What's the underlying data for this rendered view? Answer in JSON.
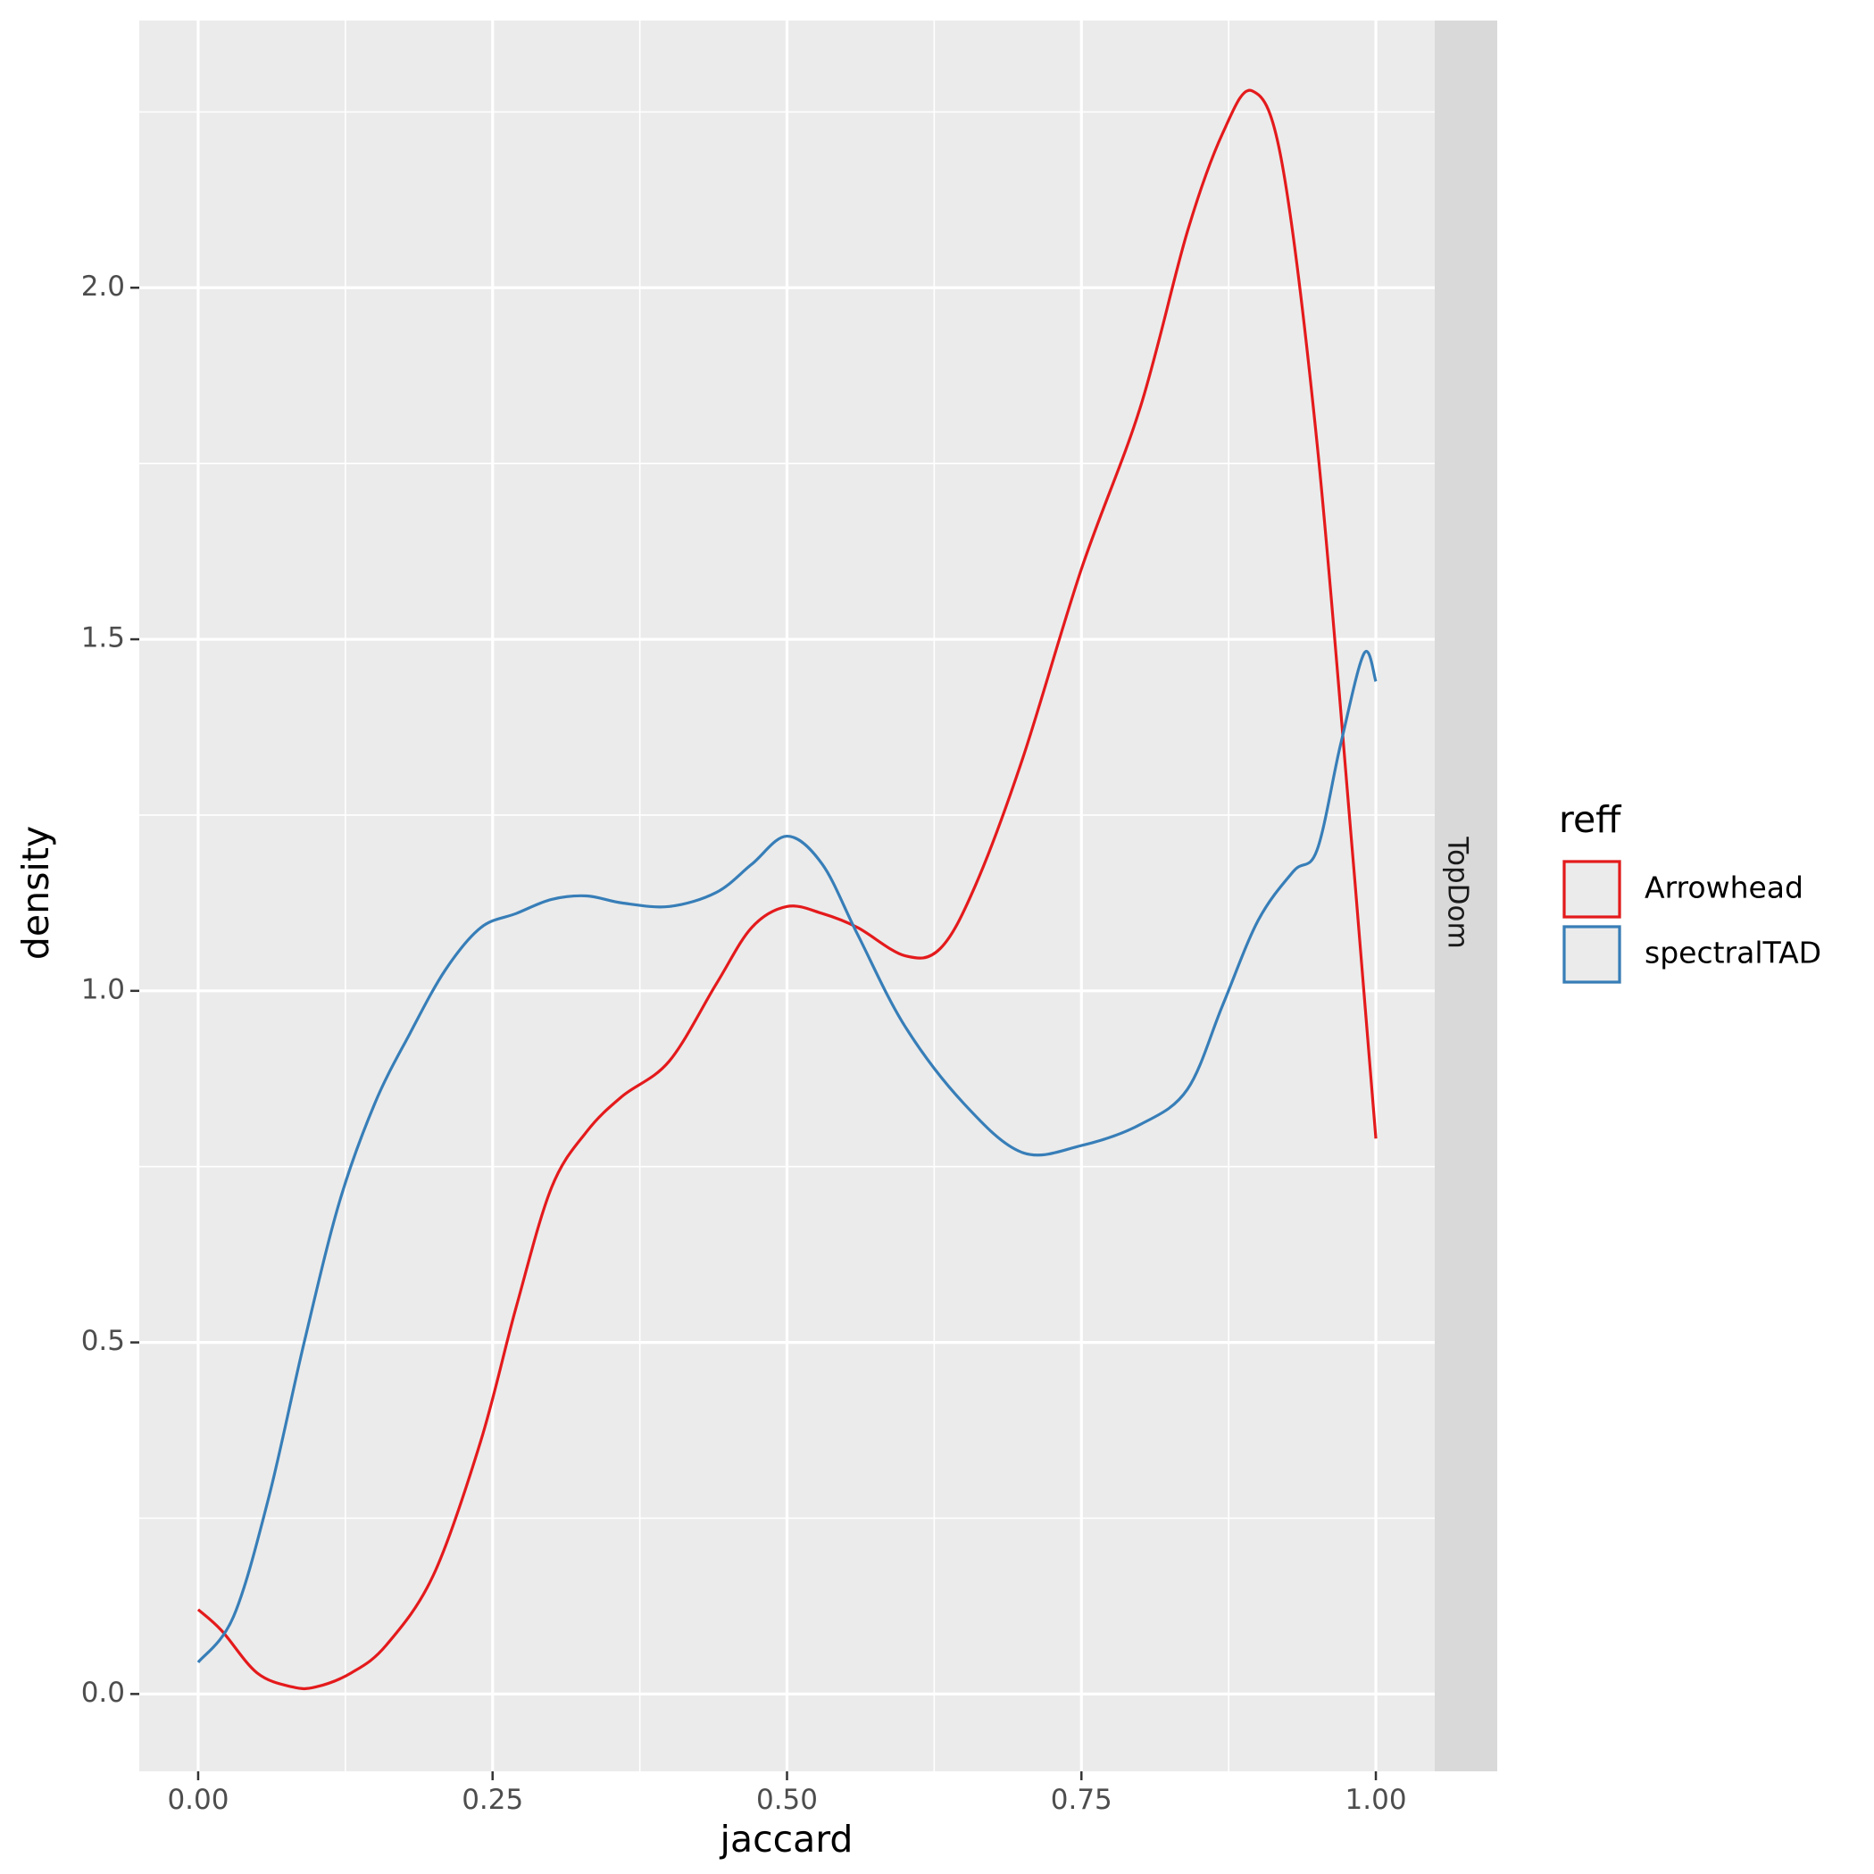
{
  "chart_data": {
    "type": "line",
    "xlabel": "jaccard",
    "ylabel": "density",
    "xlim": [
      -0.05,
      1.05
    ],
    "ylim": [
      -0.11,
      2.38
    ],
    "x_ticks": [
      {
        "value": 0.0,
        "label": "0.00"
      },
      {
        "value": 0.25,
        "label": "0.25"
      },
      {
        "value": 0.5,
        "label": "0.50"
      },
      {
        "value": 0.75,
        "label": "0.75"
      },
      {
        "value": 1.0,
        "label": "1.00"
      }
    ],
    "y_ticks": [
      {
        "value": 0.0,
        "label": "0.0"
      },
      {
        "value": 0.5,
        "label": "0.5"
      },
      {
        "value": 1.0,
        "label": "1.0"
      },
      {
        "value": 1.5,
        "label": "1.5"
      },
      {
        "value": 2.0,
        "label": "2.0"
      }
    ],
    "grid": true,
    "facet_label": "TopDom",
    "legend": {
      "title": "reff",
      "position": "right"
    },
    "series": [
      {
        "name": "Arrowhead",
        "color": "#e41a1c",
        "x": [
          0.0,
          0.02,
          0.05,
          0.08,
          0.1,
          0.13,
          0.16,
          0.2,
          0.24,
          0.27,
          0.3,
          0.33,
          0.36,
          0.4,
          0.44,
          0.47,
          0.5,
          0.53,
          0.56,
          0.6,
          0.63,
          0.66,
          0.7,
          0.75,
          0.8,
          0.84,
          0.87,
          0.895,
          0.92,
          0.95,
          0.98,
          1.0
        ],
        "y": [
          0.12,
          0.09,
          0.03,
          0.01,
          0.01,
          0.03,
          0.07,
          0.17,
          0.36,
          0.55,
          0.72,
          0.8,
          0.85,
          0.9,
          1.01,
          1.09,
          1.12,
          1.11,
          1.09,
          1.05,
          1.06,
          1.15,
          1.33,
          1.6,
          1.83,
          2.08,
          2.22,
          2.28,
          2.18,
          1.78,
          1.2,
          0.79
        ]
      },
      {
        "name": "spectralTAD",
        "color": "#377eb8",
        "x": [
          0.0,
          0.03,
          0.06,
          0.09,
          0.12,
          0.15,
          0.18,
          0.21,
          0.24,
          0.27,
          0.3,
          0.33,
          0.36,
          0.4,
          0.44,
          0.47,
          0.5,
          0.53,
          0.56,
          0.6,
          0.65,
          0.7,
          0.75,
          0.8,
          0.84,
          0.87,
          0.9,
          0.93,
          0.95,
          0.97,
          0.99,
          1.0
        ],
        "y": [
          0.045,
          0.11,
          0.28,
          0.5,
          0.7,
          0.84,
          0.94,
          1.03,
          1.09,
          1.11,
          1.13,
          1.135,
          1.125,
          1.12,
          1.14,
          1.18,
          1.22,
          1.18,
          1.08,
          0.95,
          0.84,
          0.77,
          0.78,
          0.81,
          0.86,
          0.98,
          1.1,
          1.17,
          1.2,
          1.35,
          1.48,
          1.44
        ]
      }
    ]
  }
}
